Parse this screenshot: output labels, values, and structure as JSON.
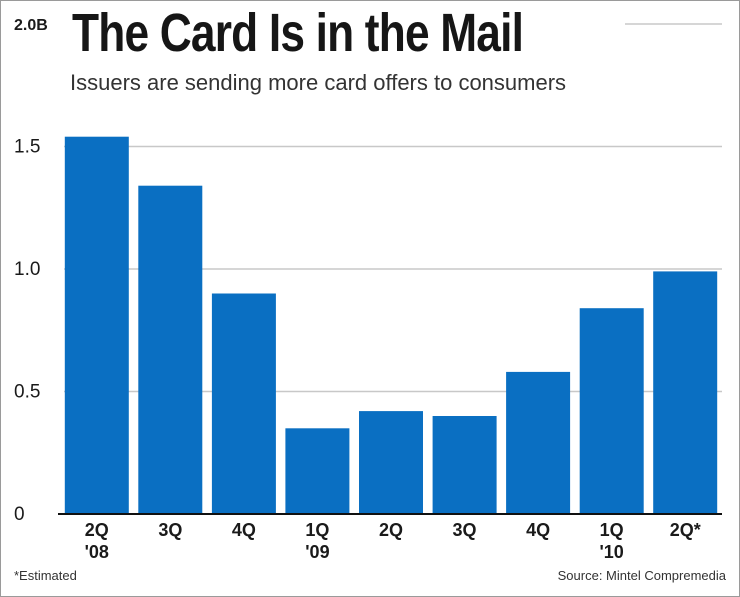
{
  "chart_data": {
    "type": "bar",
    "title": "The Card Is in the Mail",
    "subtitle": "Issuers are sending more card offers to consumers",
    "categories": [
      "2Q '08",
      "3Q",
      "4Q",
      "1Q '09",
      "2Q",
      "3Q",
      "4Q",
      "1Q '10",
      "2Q*"
    ],
    "category_labels": [
      {
        "line1": "2Q",
        "line2": "'08"
      },
      {
        "line1": "3Q",
        "line2": ""
      },
      {
        "line1": "4Q",
        "line2": ""
      },
      {
        "line1": "1Q",
        "line2": "'09"
      },
      {
        "line1": "2Q",
        "line2": ""
      },
      {
        "line1": "3Q",
        "line2": ""
      },
      {
        "line1": "4Q",
        "line2": ""
      },
      {
        "line1": "1Q",
        "line2": "'10"
      },
      {
        "line1": "2Q*",
        "line2": ""
      }
    ],
    "values": [
      1.54,
      1.34,
      0.9,
      0.35,
      0.42,
      0.4,
      0.58,
      0.84,
      0.99
    ],
    "ylim": [
      0,
      2.0
    ],
    "yticks": [
      {
        "value": 0,
        "label": "0"
      },
      {
        "value": 0.5,
        "label": "0.5"
      },
      {
        "value": 1.0,
        "label": "1.0"
      },
      {
        "value": 1.5,
        "label": "1.5"
      },
      {
        "value": 2.0,
        "label": "2.0B"
      }
    ],
    "xlabel": "",
    "ylabel": "",
    "grid": true,
    "bar_color": "#0a6fc2",
    "grid_color": "#c8c8c8",
    "footnote": "*Estimated",
    "source": "Source: Mintel Compremedia"
  }
}
